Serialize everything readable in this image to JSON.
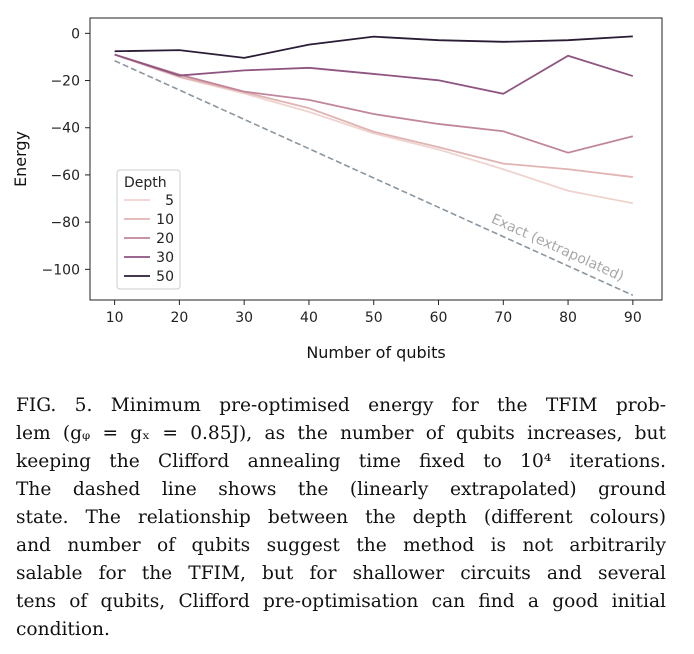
{
  "chart_data": {
    "type": "line",
    "xlabel": "Number of qubits",
    "ylabel": "Energy",
    "x": [
      10,
      20,
      30,
      40,
      50,
      60,
      70,
      80,
      90
    ],
    "xticks": [
      10,
      20,
      30,
      40,
      50,
      60,
      70,
      80,
      90
    ],
    "yticks": [
      0,
      -20,
      -40,
      -60,
      -80,
      -100
    ],
    "ytick_labels": [
      "0",
      "−20",
      "−40",
      "−60",
      "−80",
      "−100"
    ],
    "xlim": [
      6.2,
      94.5
    ],
    "ylim": [
      -113,
      6.5
    ],
    "grid": false,
    "legend": {
      "title": "Depth",
      "placement": "lower-left"
    },
    "series": [
      {
        "name": "5",
        "color": "#efd3cf",
        "values": [
          -9,
          -18.6,
          -25.5,
          -33.3,
          -42.4,
          -49.2,
          -57.6,
          -66.7,
          -72
        ]
      },
      {
        "name": "10",
        "color": "#e0b4b3",
        "values": [
          -9,
          -18.4,
          -24.9,
          -31.7,
          -41.7,
          -48.2,
          -55.2,
          -57.6,
          -60.9
        ]
      },
      {
        "name": "20",
        "color": "#c1869c",
        "values": [
          -9,
          -17.5,
          -24.7,
          -28.2,
          -34.2,
          -38.4,
          -41.5,
          -50.6,
          -43.6
        ]
      },
      {
        "name": "30",
        "color": "#8e5580",
        "values": [
          -9,
          -17.9,
          -15.7,
          -14.6,
          -17.2,
          -19.9,
          -25.6,
          -9.5,
          -18.1
        ]
      },
      {
        "name": "50",
        "color": "#2b1c36",
        "values": [
          -7.6,
          -7.1,
          -10.4,
          -4.8,
          -1.4,
          -2.9,
          -3.6,
          -2.9,
          -1.3
        ]
      }
    ],
    "reference_line": {
      "label": "Exact (extrapolated)",
      "style": "dashed",
      "color": "#8a96a0",
      "x": [
        10,
        90
      ],
      "values": [
        -11.6,
        -111
      ]
    }
  },
  "caption": {
    "lines": [
      "FIG. 5. Minimum pre-optimised energy for the TFIM prob-",
      "lem (gᵩ = gₓ = 0.85J), as the number of qubits increases, but",
      "keeping the Clifford annealing time fixed to 10⁴ iterations.",
      "The dashed line shows the (linearly extrapolated) ground",
      "state. The relationship between the depth (different colours)",
      "and number of qubits suggest the method is not arbitrarily",
      "salable for the TFIM, but for shallower circuits and several",
      "tens of qubits, Clifford pre-optimisation can find a good initial",
      "condition."
    ]
  }
}
